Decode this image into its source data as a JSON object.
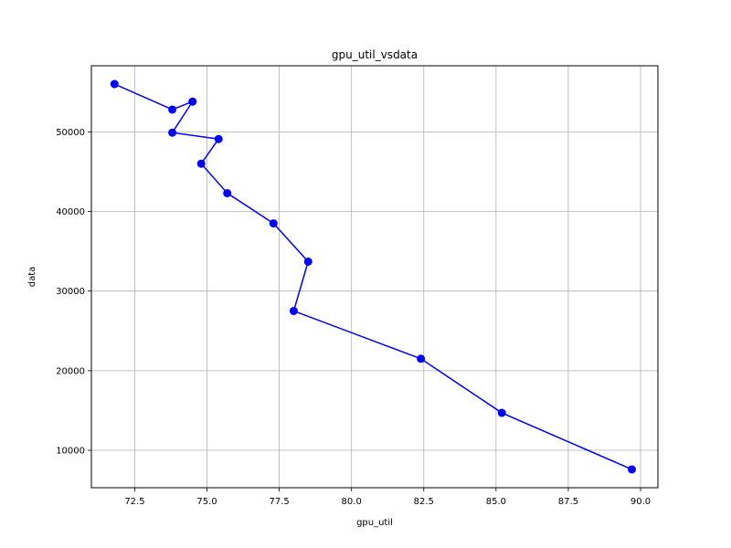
{
  "chart_data": {
    "type": "line",
    "title": "gpu_util_vsdata",
    "xlabel": "gpu_util",
    "ylabel": "data",
    "xlim": [
      71.0,
      90.6
    ],
    "ylim": [
      5300,
      58300
    ],
    "grid": true,
    "x_ticks": [
      72.5,
      75.0,
      77.5,
      80.0,
      82.5,
      85.0,
      87.5,
      90.0
    ],
    "x_tick_labels": [
      "72.5",
      "75.0",
      "77.5",
      "80.0",
      "82.5",
      "85.0",
      "87.5",
      "90.0"
    ],
    "y_ticks": [
      10000,
      20000,
      30000,
      40000,
      50000
    ],
    "y_tick_labels": [
      "10000",
      "20000",
      "30000",
      "40000",
      "50000"
    ],
    "series": [
      {
        "color": "#0000ff",
        "marker": "circle",
        "points": [
          {
            "x": 71.8,
            "y": 56000
          },
          {
            "x": 73.8,
            "y": 52800
          },
          {
            "x": 74.5,
            "y": 53800
          },
          {
            "x": 73.8,
            "y": 49900
          },
          {
            "x": 75.4,
            "y": 49100
          },
          {
            "x": 74.8,
            "y": 46000
          },
          {
            "x": 75.7,
            "y": 42300
          },
          {
            "x": 77.3,
            "y": 38500
          },
          {
            "x": 78.5,
            "y": 33700
          },
          {
            "x": 78.0,
            "y": 27500
          },
          {
            "x": 82.4,
            "y": 21500
          },
          {
            "x": 85.2,
            "y": 14700
          },
          {
            "x": 89.7,
            "y": 7600
          }
        ]
      }
    ]
  }
}
